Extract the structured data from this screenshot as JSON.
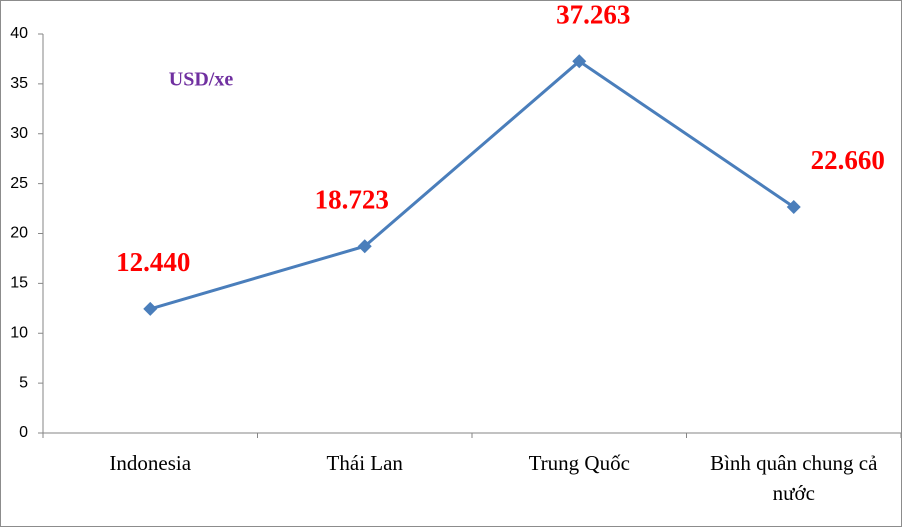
{
  "chart_data": {
    "type": "line",
    "annotation": "USD/xe",
    "categories": [
      "Indonesia",
      "Thái Lan",
      "Trung Quốc",
      "Bình quân chung cả nước"
    ],
    "series": [
      {
        "name": "USD/xe",
        "color": "#4a7ebb",
        "values": [
          12.44,
          18.723,
          37.263,
          22.66
        ],
        "value_labels": [
          "12.440",
          "18.723",
          "37.263",
          "22.660"
        ]
      }
    ],
    "ylim": [
      0,
      40
    ],
    "yticks": [
      0,
      5,
      10,
      15,
      20,
      25,
      30,
      35,
      40
    ],
    "grid": false,
    "label_color": "#ff0000",
    "annotation_color": "#7030a0"
  }
}
